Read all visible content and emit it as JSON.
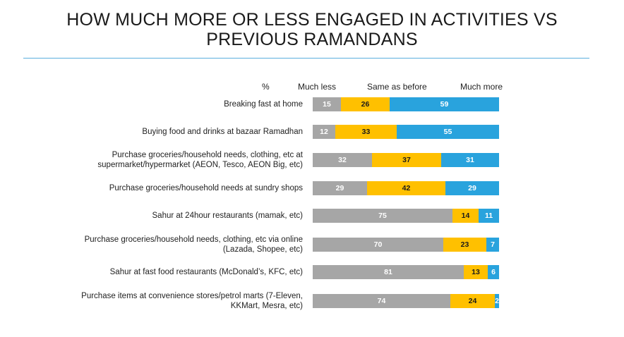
{
  "title_line1": "HOW MUCH MORE OR LESS ENGAGED IN ACTIVITIES VS",
  "title_line2": "PREVIOUS RAMANDANS",
  "colors": {
    "less": "#a6a6a6",
    "same": "#ffc000",
    "more": "#29a3dd",
    "rule": "#5aaedf"
  },
  "chart_data": {
    "type": "bar",
    "orientation": "horizontal",
    "stacked": true,
    "unit_label": "%",
    "categories": [
      [
        "Breaking fast at home"
      ],
      [
        "Buying food and drinks at bazaar Ramadhan"
      ],
      [
        "Purchase groceries/household needs, clothing, etc at",
        "supermarket/hypermarket (AEON, Tesco, AEON Big, etc)"
      ],
      [
        "Purchase groceries/household needs at sundry shops"
      ],
      [
        "Sahur at 24hour restaurants (mamak, etc)"
      ],
      [
        "Purchase groceries/household needs, clothing, etc via online",
        "(Lazada, Shopee, etc)"
      ],
      [
        "Sahur at fast food restaurants (McDonald’s, KFC, etc)"
      ],
      [
        "Purchase items at convenience stores/petrol marts (7-Eleven,",
        "KKMart, Mesra, etc)"
      ]
    ],
    "series": [
      {
        "name": "Much less",
        "values": [
          15,
          12,
          32,
          29,
          75,
          70,
          81,
          74
        ]
      },
      {
        "name": "Same as before",
        "values": [
          26,
          33,
          37,
          42,
          14,
          23,
          13,
          24
        ]
      },
      {
        "name": "Much more",
        "values": [
          59,
          55,
          31,
          29,
          11,
          7,
          6,
          2
        ]
      }
    ],
    "xlim": [
      0,
      100
    ]
  }
}
